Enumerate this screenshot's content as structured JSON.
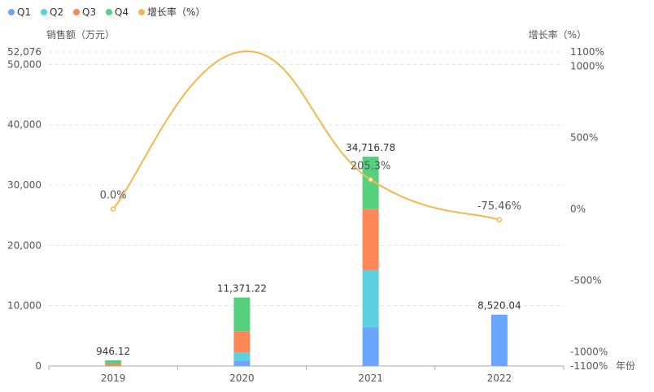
{
  "chart_data": {
    "type": "bar",
    "categories": [
      "2019",
      "2020",
      "2021",
      "2022"
    ],
    "series": [
      {
        "name": "Q1",
        "color": "#6AA5FF",
        "values": [
          0,
          900,
          6400,
          8520.04
        ]
      },
      {
        "name": "Q2",
        "color": "#5BD0DF",
        "values": [
          0,
          1350,
          9500,
          0
        ]
      },
      {
        "name": "Q3",
        "color": "#FF8757",
        "values": [
          350,
          3500,
          10100,
          0
        ]
      },
      {
        "name": "Q4",
        "color": "#55D17E",
        "values": [
          596.12,
          5621.22,
          8716.78,
          0
        ]
      }
    ],
    "totals": [
      946.12,
      11371.22,
      34716.78,
      8520.04
    ],
    "total_labels": [
      "946.12",
      "11,371.22",
      "34,716.78",
      "8,520.04"
    ],
    "growth": {
      "name": "增长率（%）",
      "color": "#F2B84B",
      "values": [
        0.0,
        1101.88,
        205.3,
        -75.46
      ],
      "labels": [
        "0.0%",
        "",
        "205.3%",
        "-75.46%"
      ]
    },
    "ylabel": "销售额（万元）",
    "y2label": "增长率（%）",
    "xlabel": "年份",
    "ylim": [
      0,
      52076
    ],
    "y_ticks": [
      0,
      10000,
      20000,
      30000,
      40000,
      50000,
      52076
    ],
    "y_tick_labels": [
      "0",
      "10,000",
      "20,000",
      "30,000",
      "40,000",
      "50,000",
      "52,076"
    ],
    "y2lim": [
      -1100,
      1100
    ],
    "y2_ticks": [
      -1100,
      -1000,
      -500,
      0,
      500,
      1000,
      1100
    ],
    "y2_tick_labels": [
      "-1100%",
      "-1000%",
      "-500%",
      "0%",
      "500%",
      "1000%",
      "1100%"
    ],
    "legend": {
      "position": "top-left",
      "items": [
        "Q1",
        "Q2",
        "Q3",
        "Q4",
        "增长率（%）"
      ]
    },
    "grid": true
  }
}
